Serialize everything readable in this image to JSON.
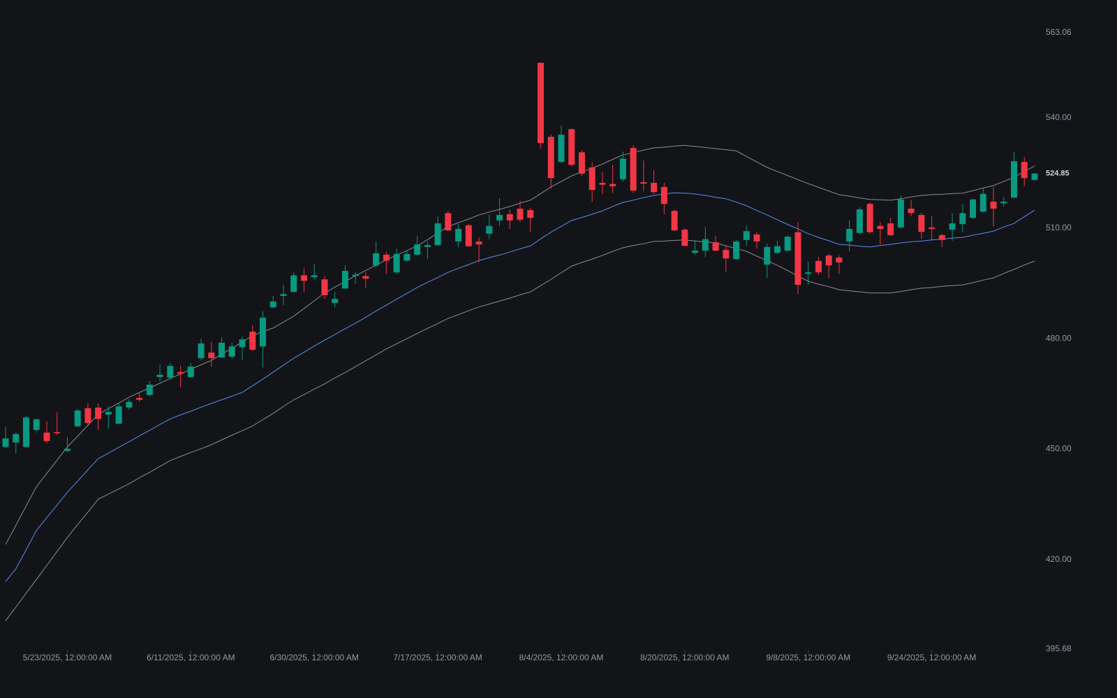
{
  "chart_data": {
    "type": "candlestick",
    "categories": [
      null,
      null,
      null,
      null,
      null,
      null,
      "5/23/2025, 12:00:00 AM",
      null,
      null,
      null,
      null,
      null,
      null,
      null,
      null,
      null,
      null,
      null,
      "6/11/2025, 12:00:00 AM",
      null,
      null,
      null,
      null,
      null,
      null,
      null,
      null,
      null,
      null,
      null,
      "6/30/2025, 12:00:00 AM",
      null,
      null,
      null,
      null,
      null,
      null,
      null,
      null,
      null,
      null,
      null,
      "7/17/2025, 12:00:00 AM",
      null,
      null,
      null,
      null,
      null,
      null,
      null,
      null,
      null,
      null,
      null,
      "8/4/2025, 12:00:00 AM",
      null,
      null,
      null,
      null,
      null,
      null,
      null,
      null,
      null,
      null,
      null,
      "8/20/2025, 12:00:00 AM",
      null,
      null,
      null,
      null,
      null,
      null,
      null,
      null,
      null,
      null,
      null,
      "9/8/2025, 12:00:00 AM",
      null,
      null,
      null,
      null,
      null,
      null,
      null,
      null,
      null,
      null,
      null,
      "9/24/2025, 12:00:00 AM",
      null,
      null,
      null,
      null,
      null,
      null,
      null,
      null,
      null,
      null
    ],
    "open": [
      450.6,
      451.8,
      450.6,
      455.2,
      454.5,
      454.6,
      449.5,
      456.2,
      461.1,
      461.3,
      459.4,
      456.9,
      461.3,
      463.9,
      464.7,
      469.6,
      469.4,
      470.9,
      469.6,
      474.7,
      476.2,
      474.9,
      475.1,
      477.7,
      481.9,
      477.9,
      488.5,
      491.6,
      492.7,
      497.2,
      496.7,
      496.1,
      489.7,
      493.6,
      497.0,
      497.0,
      499.9,
      502.8,
      498.0,
      501.2,
      502.8,
      504.9,
      505.4,
      514.1,
      506.4,
      510.8,
      506.4,
      508.5,
      512.1,
      513.8,
      515.3,
      514.9,
      554.9,
      534.8,
      528.0,
      536.9,
      530.6,
      526.5,
      522.3,
      522.0,
      523.3,
      531.8,
      522.5,
      522.3,
      521.2,
      514.7,
      509.6,
      503.3,
      503.9,
      506.2,
      504.1,
      501.6,
      506.8,
      508.3,
      500.1,
      503.3,
      503.9,
      508.9,
      497.6,
      501.1,
      502.6,
      502.0,
      506.4,
      508.7,
      516.6,
      510.6,
      511.3,
      510.2,
      515.3,
      513.6,
      510.2,
      508.1,
      509.6,
      511.1,
      512.8,
      514.5,
      517.2,
      516.8,
      518.3,
      528.0,
      523.1
    ],
    "high": [
      456.0,
      454.5,
      459.0,
      458.2,
      457.5,
      460.0,
      453.3,
      460.9,
      462.4,
      462.4,
      461.6,
      462.4,
      463.5,
      465.4,
      468.5,
      473.0,
      473.4,
      472.6,
      473.4,
      480.0,
      479.1,
      480.4,
      478.9,
      480.6,
      483.6,
      487.4,
      491.6,
      494.6,
      498.0,
      499.1,
      500.3,
      497.0,
      492.7,
      499.9,
      498.2,
      498.0,
      506.4,
      503.5,
      504.5,
      503.7,
      507.9,
      506.4,
      513.2,
      514.7,
      511.1,
      511.1,
      507.5,
      513.6,
      518.1,
      515.1,
      517.4,
      515.5,
      555.1,
      535.4,
      537.9,
      537.1,
      531.2,
      527.8,
      525.2,
      527.2,
      530.8,
      532.5,
      528.4,
      525.7,
      522.3,
      515.1,
      510.0,
      506.8,
      510.4,
      507.9,
      505.2,
      506.8,
      510.6,
      508.9,
      505.8,
      506.6,
      508.1,
      511.7,
      500.9,
      502.2,
      503.0,
      502.6,
      512.1,
      515.7,
      517.0,
      511.7,
      512.8,
      518.9,
      517.6,
      514.1,
      513.2,
      508.5,
      514.1,
      516.6,
      518.0,
      520.8,
      521.2,
      518.5,
      530.6,
      529.3,
      525.0
    ],
    "low": [
      450.3,
      448.8,
      450.5,
      454.5,
      451.6,
      453.9,
      449.2,
      456.0,
      456.7,
      455.2,
      455.6,
      456.7,
      460.7,
      462.8,
      464.3,
      468.5,
      469.0,
      466.8,
      469.4,
      474.1,
      472.4,
      474.7,
      474.5,
      474.3,
      476.6,
      472.2,
      488.4,
      489.1,
      492.5,
      492.7,
      496.1,
      490.8,
      488.5,
      493.5,
      494.9,
      493.8,
      499.5,
      497.6,
      497.4,
      500.9,
      502.6,
      501.6,
      505.2,
      509.2,
      504.9,
      504.9,
      500.7,
      507.0,
      510.6,
      509.8,
      511.7,
      509.0,
      531.6,
      520.8,
      527.6,
      526.7,
      524.2,
      517.2,
      519.3,
      519.5,
      522.7,
      519.5,
      520.0,
      519.3,
      513.8,
      509.2,
      505.1,
      502.8,
      502.2,
      503.7,
      498.2,
      501.4,
      505.2,
      504.5,
      496.5,
      503.0,
      503.7,
      492.1,
      494.6,
      497.4,
      496.5,
      497.6,
      503.7,
      508.3,
      508.5,
      505.6,
      507.9,
      509.8,
      513.2,
      507.1,
      506.8,
      504.9,
      506.6,
      508.9,
      512.6,
      514.3,
      510.4,
      515.9,
      518.1,
      521.4,
      522.9
    ],
    "close": [
      452.9,
      454.1,
      458.6,
      458.1,
      452.2,
      454.3,
      450.1,
      460.5,
      457.1,
      458.2,
      460.1,
      461.6,
      462.8,
      463.4,
      467.5,
      470.2,
      472.6,
      470.5,
      472.4,
      478.7,
      474.7,
      478.9,
      477.9,
      479.8,
      477.0,
      485.7,
      490.1,
      492.1,
      497.2,
      495.7,
      497.2,
      491.8,
      490.8,
      498.4,
      497.4,
      496.3,
      503.2,
      501.2,
      503.0,
      503.0,
      505.6,
      505.4,
      511.3,
      509.4,
      509.8,
      505.1,
      505.6,
      510.6,
      513.6,
      512.1,
      512.3,
      512.8,
      533.1,
      523.6,
      535.4,
      527.2,
      524.8,
      520.4,
      521.8,
      521.4,
      528.9,
      520.2,
      522.1,
      519.8,
      516.6,
      509.4,
      505.2,
      503.9,
      507.0,
      503.9,
      501.8,
      506.4,
      509.2,
      506.4,
      504.9,
      505.1,
      507.7,
      494.6,
      498.0,
      498.0,
      499.9,
      500.7,
      509.8,
      515.1,
      508.9,
      509.8,
      508.1,
      517.8,
      514.1,
      509.0,
      509.8,
      506.8,
      511.3,
      514.1,
      517.8,
      519.3,
      515.3,
      517.2,
      528.2,
      523.6,
      524.85
    ],
    "up_color": "#089981",
    "down_color": "#f23645",
    "lines": [
      {
        "color": "#8a8d96",
        "values": [
          424.1,
          429.3,
          434.6,
          439.8,
          443.4,
          447.0,
          450.6,
          453.5,
          456.5,
          459.4,
          461.0,
          462.5,
          464.1,
          465.4,
          466.6,
          467.9,
          469.2,
          470.4,
          471.7,
          472.9,
          474.1,
          475.8,
          477.4,
          479.1,
          480.8,
          481.9,
          482.9,
          484.5,
          486.1,
          488.2,
          490.3,
          492.4,
          494.0,
          495.5,
          497.1,
          498.5,
          500.0,
          501.4,
          502.7,
          503.9,
          505.2,
          506.9,
          508.7,
          510.4,
          511.5,
          512.5,
          513.6,
          514.4,
          515.1,
          515.9,
          516.8,
          517.6,
          519.4,
          521.2,
          522.7,
          524.2,
          525.3,
          526.3,
          527.4,
          528.7,
          529.9,
          530.5,
          531.2,
          531.8,
          532.0,
          532.3,
          532.5,
          532.2,
          531.9,
          531.6,
          531.3,
          531.0,
          529.5,
          528.0,
          526.5,
          525.4,
          524.3,
          523.2,
          522.1,
          521.1,
          520.1,
          519.1,
          518.7,
          518.2,
          517.8,
          517.7,
          517.6,
          518.0,
          518.5,
          518.9,
          519.1,
          519.2,
          519.4,
          519.5,
          520.2,
          520.9,
          521.6,
          522.7,
          523.8,
          525.4,
          526.9
        ]
      },
      {
        "color": "#5b8def",
        "values": [
          414.0,
          417.5,
          422.7,
          427.9,
          431.4,
          434.8,
          438.3,
          441.3,
          444.4,
          447.4,
          448.9,
          450.5,
          452.0,
          453.6,
          455.1,
          456.7,
          458.2,
          459.3,
          460.3,
          461.4,
          462.4,
          463.4,
          464.4,
          465.4,
          467.2,
          469.0,
          470.9,
          472.8,
          474.7,
          476.3,
          478.0,
          479.6,
          481.1,
          482.7,
          484.2,
          485.8,
          487.5,
          489.1,
          490.7,
          492.3,
          493.9,
          495.3,
          496.6,
          498.0,
          499.1,
          500.1,
          501.2,
          502.0,
          502.7,
          503.5,
          504.4,
          505.2,
          507.1,
          508.9,
          510.5,
          512.1,
          512.9,
          513.8,
          514.7,
          515.9,
          517.0,
          517.6,
          518.3,
          518.9,
          519.3,
          519.6,
          519.5,
          519.3,
          518.9,
          518.4,
          518.0,
          517.1,
          516.1,
          514.8,
          513.6,
          512.3,
          511.0,
          509.8,
          508.5,
          507.5,
          506.6,
          505.6,
          505.4,
          505.1,
          504.9,
          505.3,
          505.6,
          506.0,
          506.3,
          506.5,
          506.8,
          507.0,
          507.3,
          507.5,
          508.1,
          508.6,
          509.2,
          510.3,
          511.3,
          513.1,
          514.9
        ]
      },
      {
        "color": "#8a8d96",
        "values": [
          403.4,
          407.1,
          410.9,
          414.6,
          418.4,
          422.2,
          426.0,
          429.5,
          432.9,
          436.4,
          437.8,
          439.2,
          440.6,
          442.2,
          443.7,
          445.3,
          446.9,
          448.0,
          449.1,
          450.1,
          451.2,
          452.5,
          453.8,
          455.0,
          456.3,
          458.0,
          459.7,
          461.6,
          463.4,
          464.8,
          466.3,
          467.7,
          469.3,
          470.8,
          472.4,
          474.0,
          475.6,
          477.2,
          478.6,
          480.0,
          481.4,
          482.8,
          484.1,
          485.5,
          486.5,
          487.6,
          488.6,
          489.4,
          490.2,
          491.0,
          491.9,
          492.7,
          494.4,
          496.1,
          497.9,
          499.7,
          500.7,
          501.6,
          502.6,
          503.7,
          504.7,
          505.3,
          505.8,
          506.4,
          506.5,
          506.7,
          506.8,
          506.5,
          506.3,
          506.0,
          505.2,
          504.5,
          503.7,
          502.4,
          501.2,
          499.9,
          498.5,
          497.0,
          495.6,
          494.8,
          494.1,
          493.3,
          493.0,
          492.7,
          492.4,
          492.4,
          492.4,
          492.8,
          493.3,
          493.7,
          493.9,
          494.2,
          494.4,
          494.6,
          495.2,
          495.9,
          496.5,
          497.7,
          498.8,
          500.0,
          501.1
        ]
      }
    ],
    "ylim": [
      395.68,
      563.06
    ],
    "yticks": [
      395.68,
      {
        "value": 420,
        "label": "420.00"
      },
      {
        "value": 450,
        "label": "450.00"
      },
      {
        "value": 480,
        "label": "480.00"
      },
      {
        "value": 510,
        "label": "510.00"
      },
      {
        "value": 540,
        "label": "540.00"
      },
      563.06
    ]
  }
}
